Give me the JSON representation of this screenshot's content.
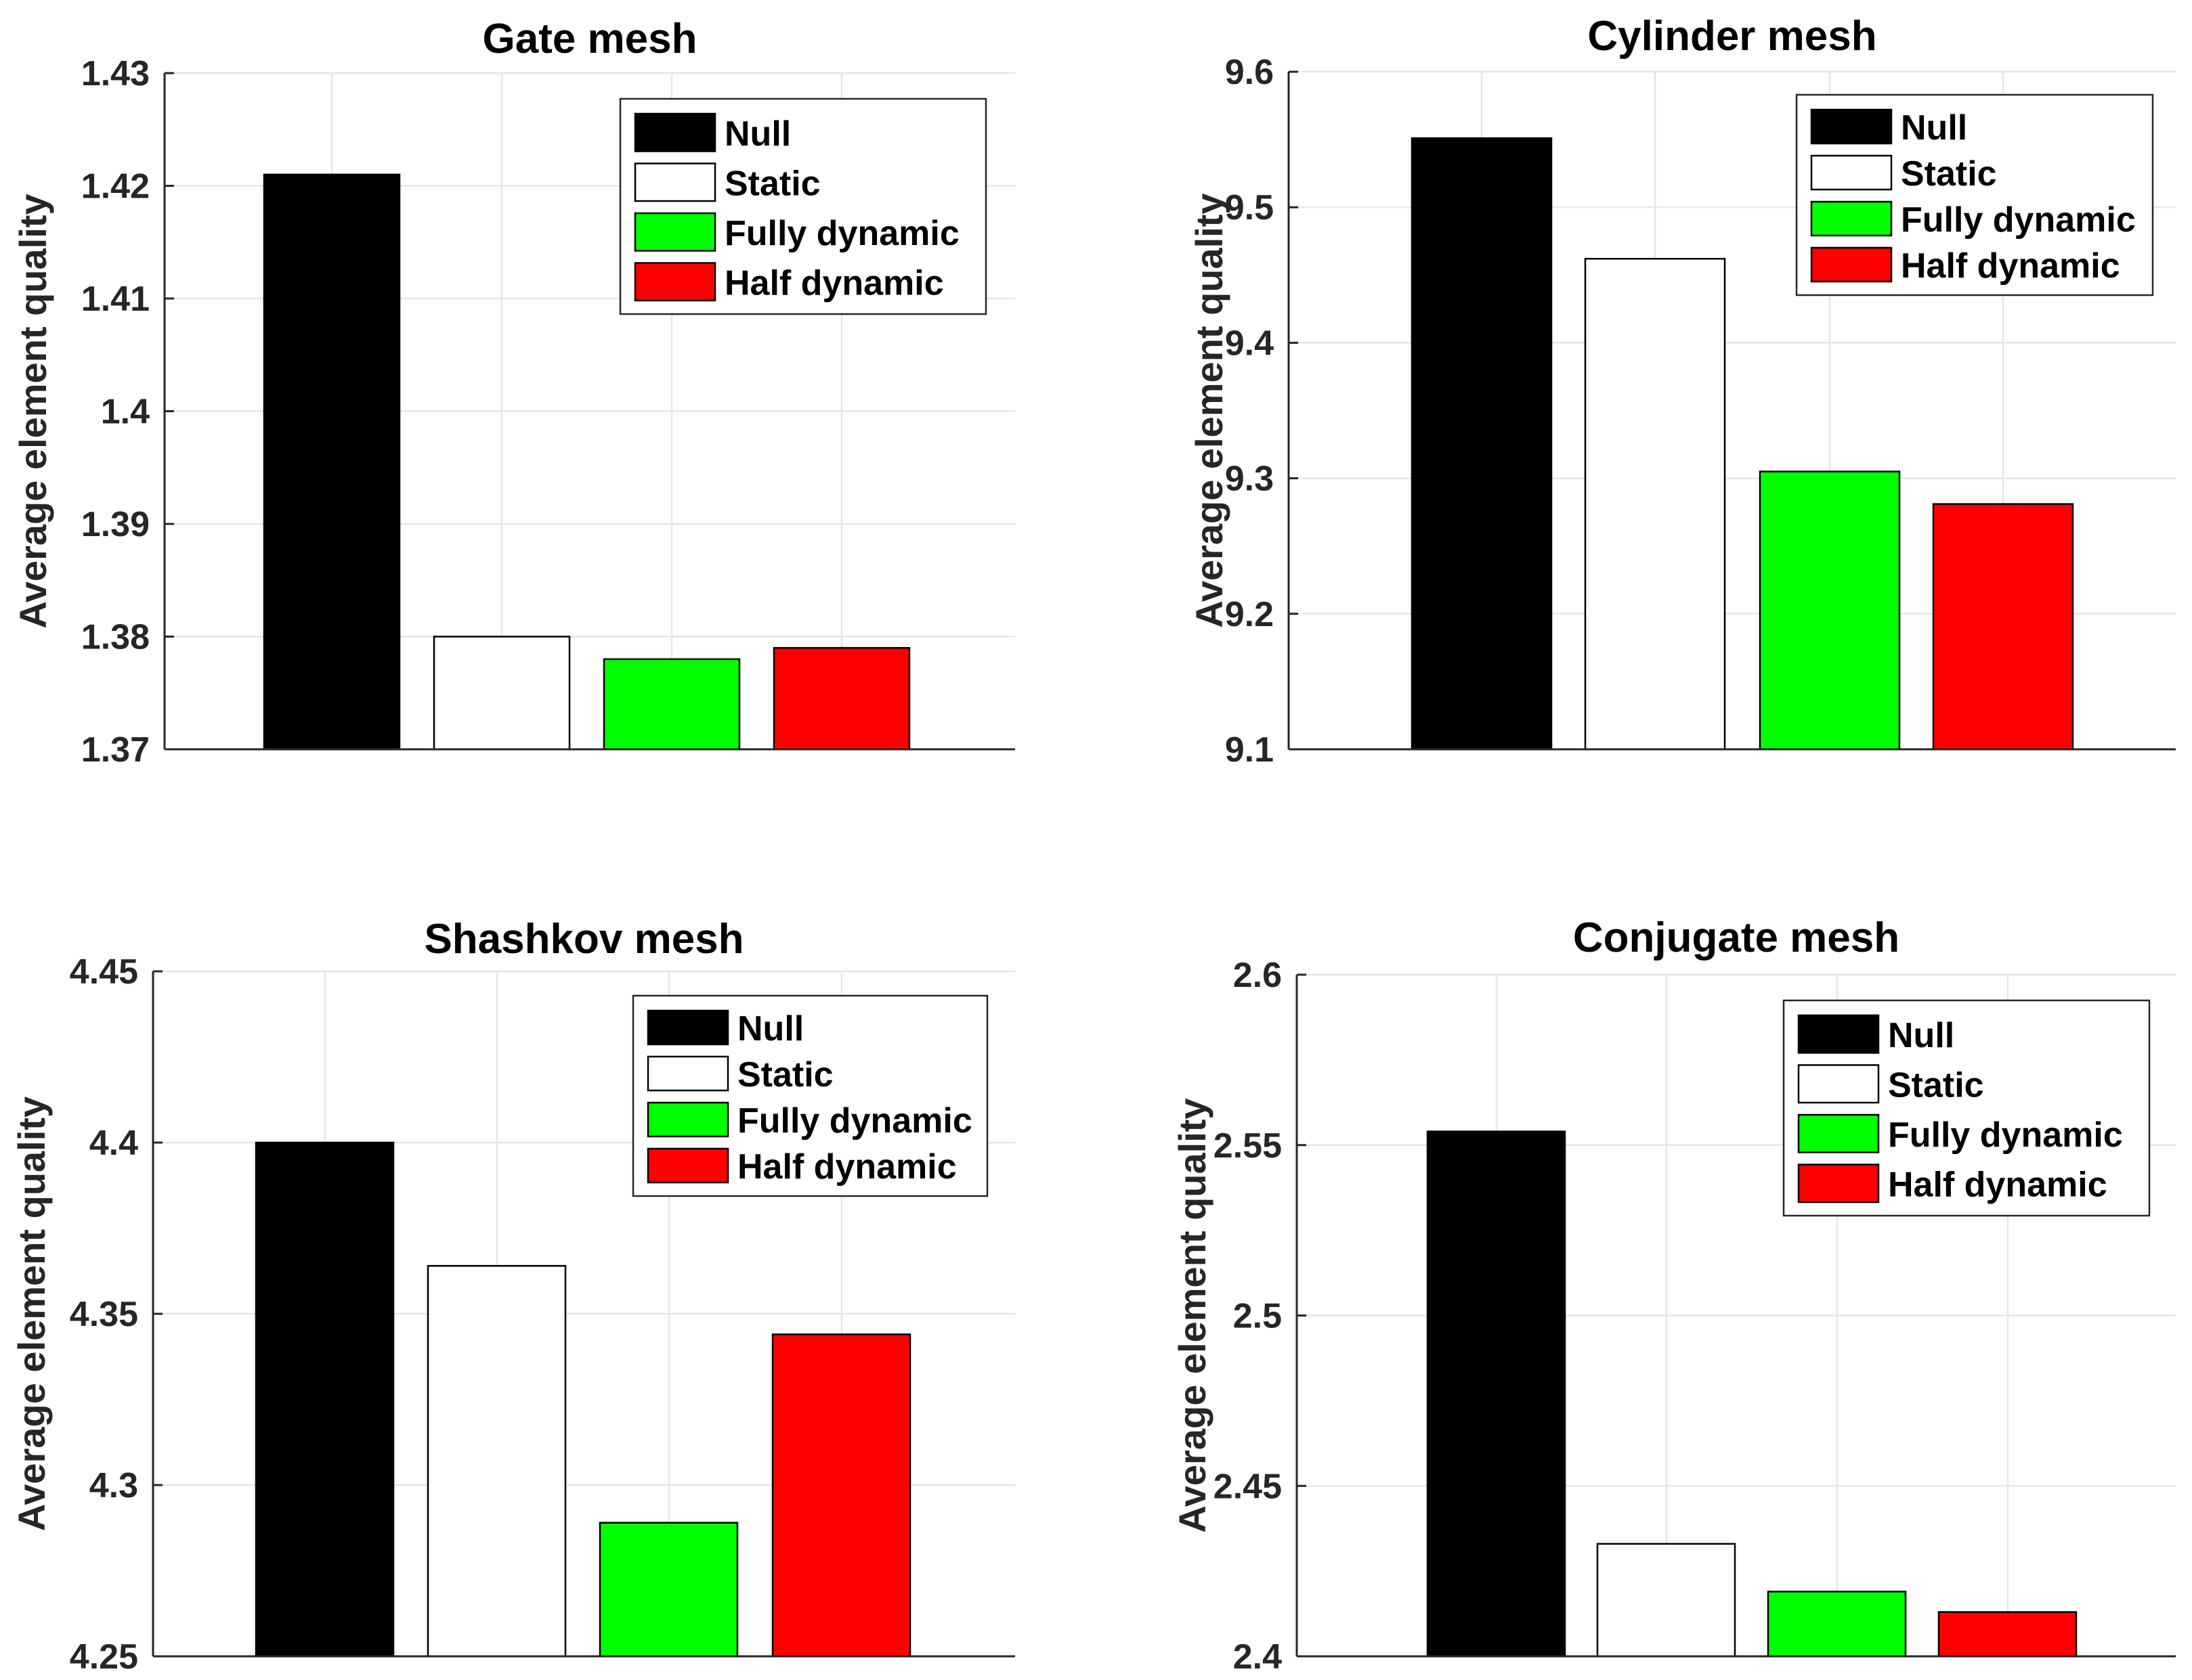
{
  "chart_data": [
    {
      "type": "bar",
      "title": "Gate mesh",
      "ylabel": "Average element quality",
      "xlabel": "",
      "ylim": [
        1.37,
        1.43
      ],
      "yticks": [
        "1.37",
        "1.38",
        "1.39",
        "1.4",
        "1.41",
        "1.42",
        "1.43"
      ],
      "categories": [
        "Null",
        "Static",
        "Fully dynamic",
        "Half dynamic"
      ],
      "values": [
        1.421,
        1.38,
        1.378,
        1.379
      ],
      "colors": [
        "#000000",
        "#ffffff",
        "#00ff00",
        "#ff0000"
      ],
      "legend": [
        "Null",
        "Static",
        "Fully dynamic",
        "Half dynamic"
      ],
      "legend_position": "top-right",
      "grid": true
    },
    {
      "type": "bar",
      "title": "Cylinder mesh",
      "ylabel": "Average element quality",
      "xlabel": "",
      "ylim": [
        9.1,
        9.6
      ],
      "yticks": [
        "9.1",
        "9.2",
        "9.3",
        "9.4",
        "9.5",
        "9.6"
      ],
      "categories": [
        "Null",
        "Static",
        "Fully dynamic",
        "Half dynamic"
      ],
      "values": [
        9.551,
        9.462,
        9.305,
        9.281
      ],
      "colors": [
        "#000000",
        "#ffffff",
        "#00ff00",
        "#ff0000"
      ],
      "legend": [
        "Null",
        "Static",
        "Fully dynamic",
        "Half dynamic"
      ],
      "legend_position": "top-right",
      "grid": true
    },
    {
      "type": "bar",
      "title": "Shashkov mesh",
      "ylabel": "Average element quality",
      "xlabel": "",
      "ylim": [
        4.25,
        4.45
      ],
      "yticks": [
        "4.25",
        "4.3",
        "4.35",
        "4.4",
        "4.45"
      ],
      "categories": [
        "Null",
        "Static",
        "Fully dynamic",
        "Half dynamic"
      ],
      "values": [
        4.4,
        4.364,
        4.289,
        4.344
      ],
      "colors": [
        "#000000",
        "#ffffff",
        "#00ff00",
        "#ff0000"
      ],
      "legend": [
        "Null",
        "Static",
        "Fully dynamic",
        "Half dynamic"
      ],
      "legend_position": "top-right",
      "grid": true
    },
    {
      "type": "bar",
      "title": "Conjugate mesh",
      "ylabel": "Average element quality",
      "xlabel": "",
      "ylim": [
        2.4,
        2.6
      ],
      "yticks": [
        "2.4",
        "2.45",
        "2.5",
        "2.55",
        "2.6"
      ],
      "categories": [
        "Null",
        "Static",
        "Fully dynamic",
        "Half dynamic"
      ],
      "values": [
        2.554,
        2.433,
        2.419,
        2.413
      ],
      "colors": [
        "#000000",
        "#ffffff",
        "#00ff00",
        "#ff0000"
      ],
      "legend": [
        "Null",
        "Static",
        "Fully dynamic",
        "Half dynamic"
      ],
      "legend_position": "top-right",
      "grid": true
    }
  ]
}
